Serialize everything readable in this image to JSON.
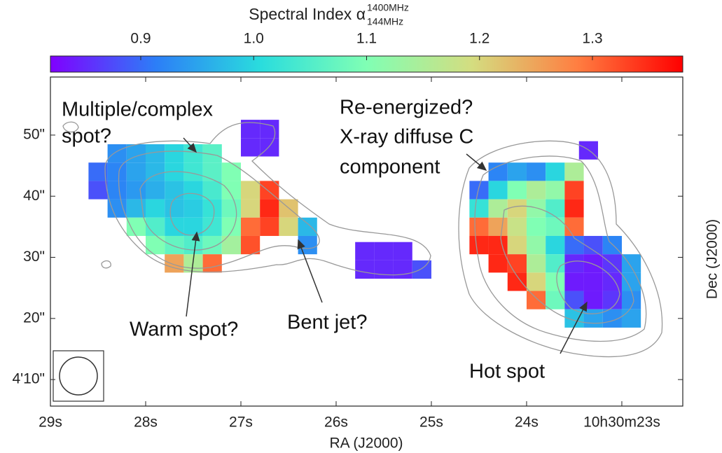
{
  "chart_data": {
    "type": "pixelmap",
    "colorbar_label": "Spectral Index α",
    "colorbar_label_sup": "1400MHz",
    "colorbar_label_sub": "144MHz",
    "clim": [
      0.82,
      1.38
    ],
    "cticks": [
      0.9,
      {
        "value": 1,
        "label": "1.0"
      },
      1.1,
      1.2,
      1.3
    ],
    "colormap": [
      "#8000ff",
      "#2c7ef7",
      "#2adddd",
      "#80ffb4",
      "#d4dd80",
      "#ff7e41",
      "#ff0000"
    ],
    "xlabel": "RA (J2000)",
    "ylabel": "Dec (J2000)",
    "xlim": [
      29,
      22.36
    ],
    "ylim": [
      5.66,
      59.5
    ],
    "xticks": [
      {
        "value": 29,
        "label": "29s"
      },
      {
        "value": 28,
        "label": "28s"
      },
      {
        "value": 27,
        "label": "27s"
      },
      {
        "value": 26,
        "label": "26s"
      },
      {
        "value": 25,
        "label": "25s"
      },
      {
        "value": 24,
        "label": "24s"
      },
      {
        "value": 23,
        "label": "10h30m23s"
      }
    ],
    "yticks": [
      {
        "value": 50,
        "label": "50\""
      },
      {
        "value": 40,
        "label": "40\""
      },
      {
        "value": 30,
        "label": "30\""
      },
      {
        "value": 20,
        "label": "20\""
      },
      {
        "value": 10,
        "label": "4'10\""
      }
    ],
    "cells": [
      [
        28.3,
        47,
        0.93
      ],
      [
        28.1,
        47,
        0.95
      ],
      [
        27.9,
        47,
        0.97
      ],
      [
        27.7,
        47,
        1.0
      ],
      [
        27.5,
        47,
        1.03
      ],
      [
        27.3,
        47,
        1.06
      ],
      [
        28.5,
        44,
        0.9
      ],
      [
        28.3,
        44,
        0.92
      ],
      [
        28.1,
        44,
        0.95
      ],
      [
        27.9,
        44,
        0.97
      ],
      [
        27.7,
        44,
        1.0
      ],
      [
        27.5,
        44,
        1.03
      ],
      [
        27.3,
        44,
        1.06
      ],
      [
        27.1,
        44,
        1.1
      ],
      [
        28.5,
        41,
        0.88
      ],
      [
        28.3,
        41,
        0.92
      ],
      [
        28.1,
        41,
        0.94
      ],
      [
        27.9,
        41,
        0.96
      ],
      [
        27.7,
        41,
        0.98
      ],
      [
        27.5,
        41,
        1.0
      ],
      [
        27.3,
        41,
        1.04
      ],
      [
        27.1,
        41,
        1.1
      ],
      [
        26.9,
        41,
        1.2
      ],
      [
        26.7,
        41,
        1.33
      ],
      [
        28.3,
        38,
        0.93
      ],
      [
        28.1,
        38,
        0.97
      ],
      [
        27.9,
        38,
        1.0
      ],
      [
        27.7,
        38,
        0.98
      ],
      [
        27.5,
        38,
        0.99
      ],
      [
        27.3,
        38,
        1.02
      ],
      [
        27.1,
        38,
        1.08
      ],
      [
        26.9,
        38,
        1.2
      ],
      [
        26.7,
        38,
        1.35
      ],
      [
        26.5,
        38,
        1.22
      ],
      [
        28.1,
        35,
        1.1
      ],
      [
        27.9,
        35,
        1.05
      ],
      [
        27.7,
        35,
        1.0
      ],
      [
        27.5,
        35,
        1.0
      ],
      [
        27.3,
        35,
        1.03
      ],
      [
        27.1,
        35,
        1.1
      ],
      [
        26.9,
        35,
        1.3
      ],
      [
        26.7,
        35,
        1.33
      ],
      [
        26.5,
        35,
        1.2
      ],
      [
        26.3,
        35,
        0.97
      ],
      [
        27.9,
        32,
        1.1
      ],
      [
        27.7,
        32,
        1.07
      ],
      [
        27.5,
        32,
        1.05
      ],
      [
        27.3,
        32,
        1.08
      ],
      [
        27.1,
        32,
        1.14
      ],
      [
        26.9,
        32,
        1.32
      ],
      [
        26.3,
        32,
        0.93
      ],
      [
        27.7,
        29,
        1.25
      ],
      [
        27.5,
        29,
        1.15
      ],
      [
        27.3,
        29,
        1.3
      ],
      [
        26.9,
        51,
        0.85
      ],
      [
        26.7,
        51,
        0.85
      ],
      [
        26.9,
        48,
        0.85
      ],
      [
        26.7,
        48,
        0.85
      ],
      [
        25.7,
        31,
        0.85
      ],
      [
        25.5,
        31,
        0.85
      ],
      [
        25.3,
        31,
        0.85
      ],
      [
        25.7,
        28,
        0.85
      ],
      [
        25.5,
        28,
        0.85
      ],
      [
        25.3,
        28,
        0.85
      ],
      [
        25.1,
        28,
        0.88
      ],
      [
        23.35,
        47.5,
        0.85
      ],
      [
        24.3,
        44,
        0.92
      ],
      [
        24.1,
        44,
        0.95
      ],
      [
        23.9,
        44,
        0.93
      ],
      [
        23.7,
        44,
        1.0
      ],
      [
        23.5,
        44,
        1.15
      ],
      [
        24.5,
        41,
        0.9
      ],
      [
        24.3,
        41,
        1.0
      ],
      [
        24.1,
        41,
        1.1
      ],
      [
        23.9,
        41,
        1.15
      ],
      [
        23.7,
        41,
        1.12
      ],
      [
        23.5,
        41,
        1.33
      ],
      [
        24.5,
        38,
        1.02
      ],
      [
        24.3,
        38,
        1.15
      ],
      [
        24.1,
        38,
        1.2
      ],
      [
        23.9,
        38,
        1.12
      ],
      [
        23.7,
        38,
        1.05
      ],
      [
        23.5,
        38,
        1.35
      ],
      [
        24.5,
        35,
        1.3
      ],
      [
        24.3,
        35,
        1.25
      ],
      [
        24.1,
        35,
        1.18
      ],
      [
        23.9,
        35,
        1.1
      ],
      [
        23.7,
        35,
        1.08
      ],
      [
        23.5,
        35,
        1.3
      ],
      [
        24.5,
        32,
        1.35
      ],
      [
        24.3,
        32,
        1.35
      ],
      [
        24.1,
        32,
        1.2
      ],
      [
        23.9,
        32,
        1.12
      ],
      [
        23.7,
        32,
        1.0
      ],
      [
        23.5,
        32,
        0.9
      ],
      [
        23.3,
        32,
        0.88
      ],
      [
        23.1,
        32,
        0.92
      ],
      [
        24.3,
        29,
        1.35
      ],
      [
        24.1,
        29,
        1.33
      ],
      [
        23.9,
        29,
        1.15
      ],
      [
        23.7,
        29,
        1.05
      ],
      [
        23.5,
        29,
        0.85
      ],
      [
        23.3,
        29,
        0.84
      ],
      [
        23.1,
        29,
        0.86
      ],
      [
        22.9,
        29,
        0.95
      ],
      [
        24.1,
        26,
        1.35
      ],
      [
        23.9,
        26,
        1.2
      ],
      [
        23.7,
        26,
        1.1
      ],
      [
        23.5,
        26,
        0.84
      ],
      [
        23.3,
        26,
        0.84
      ],
      [
        23.1,
        26,
        0.85
      ],
      [
        22.9,
        26,
        0.95
      ],
      [
        23.9,
        23,
        1.3
      ],
      [
        23.7,
        23,
        1.08
      ],
      [
        23.5,
        23,
        0.88
      ],
      [
        23.3,
        23,
        0.84
      ],
      [
        23.1,
        23,
        0.86
      ],
      [
        22.9,
        23,
        0.93
      ],
      [
        23.5,
        20,
        0.98
      ],
      [
        23.3,
        20,
        0.95
      ],
      [
        23.1,
        20,
        0.93
      ],
      [
        22.9,
        20,
        0.95
      ]
    ],
    "annotations": [
      [
        "Multiple/complex",
        "spot?"
      ],
      [
        "Re-energized?",
        "X-ray diffuse C",
        "component"
      ],
      [
        "Warm spot?"
      ],
      [
        "Bent jet?"
      ],
      [
        "Hot spot"
      ]
    ]
  }
}
